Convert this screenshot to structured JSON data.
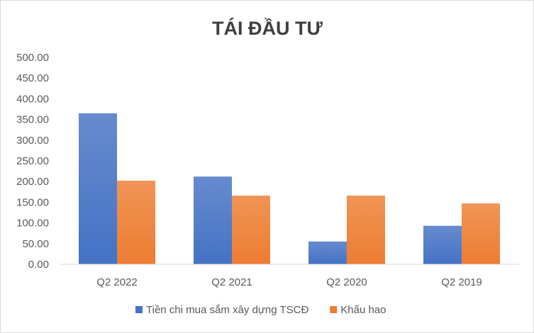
{
  "chart_data": {
    "type": "bar",
    "title": "TÁI ĐẦU TƯ",
    "xlabel": "",
    "ylabel": "",
    "categories": [
      "Q2 2022",
      "Q2 2021",
      "Q2 2020",
      "Q2 2019"
    ],
    "series": [
      {
        "name": "Tiền chi mua sắm xây dựng TSCĐ",
        "color": "#4472C4",
        "values": [
          365,
          212,
          55,
          93
        ]
      },
      {
        "name": "Khấu hao",
        "color": "#ED7D31",
        "values": [
          202,
          166,
          166,
          147
        ]
      }
    ],
    "ylim": [
      0,
      500
    ],
    "yticks": [
      "0.00",
      "50.00",
      "100.00",
      "150.00",
      "200.00",
      "250.00",
      "300.00",
      "350.00",
      "400.00",
      "450.00",
      "500.00"
    ],
    "ytick_values": [
      0,
      50,
      100,
      150,
      200,
      250,
      300,
      350,
      400,
      450,
      500
    ],
    "grid": false,
    "legend_position": "bottom"
  }
}
